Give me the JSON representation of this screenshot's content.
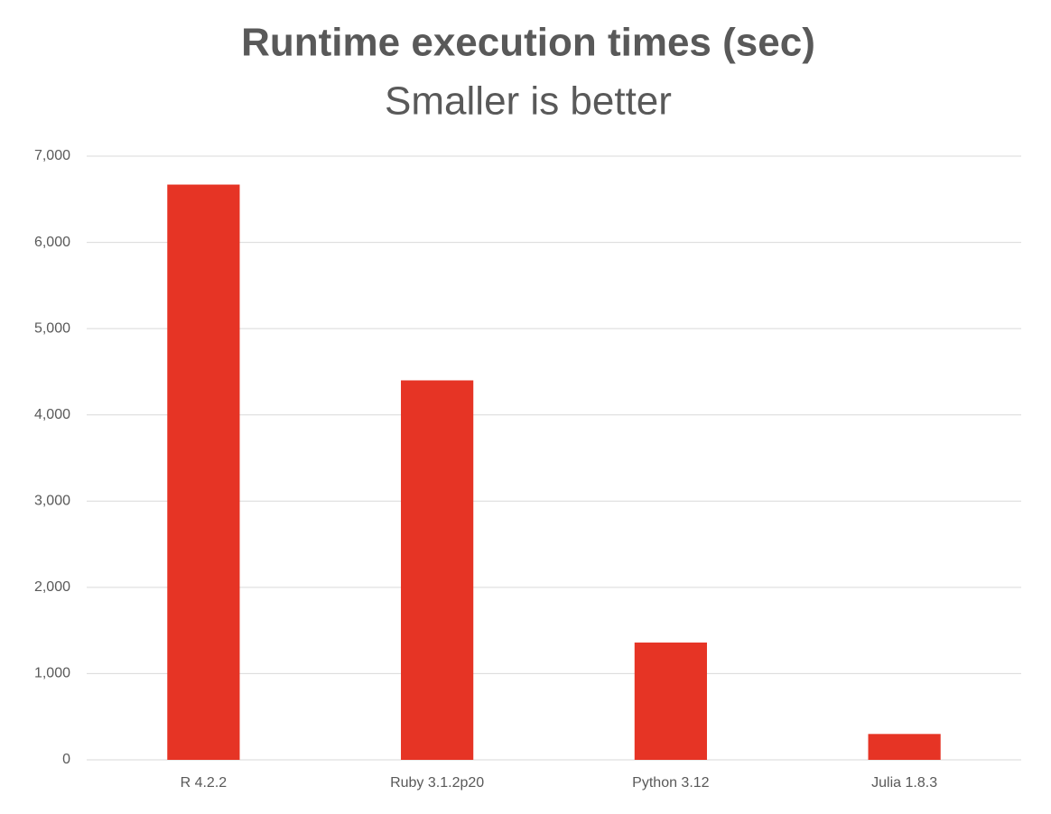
{
  "chart_data": {
    "type": "bar",
    "title": "Runtime execution times (sec)",
    "subtitle": "Smaller is better",
    "categories": [
      "R 4.2.2",
      "Ruby 3.1.2p20",
      "Python 3.12",
      "Julia 1.8.3"
    ],
    "values": [
      6670,
      4400,
      1360,
      300
    ],
    "color": "#e63425",
    "ylim": [
      0,
      7000
    ],
    "yticks": [
      0,
      {
        "value": 1000,
        "label": "1,000"
      },
      {
        "value": 2000,
        "label": "2,000"
      },
      {
        "value": 3000,
        "label": "3,000"
      },
      {
        "value": 4000,
        "label": "4,000"
      },
      {
        "value": 5000,
        "label": "5,000"
      },
      {
        "value": 6000,
        "label": "6,000"
      },
      {
        "value": 7000,
        "label": "7,000"
      }
    ],
    "grid": true
  }
}
